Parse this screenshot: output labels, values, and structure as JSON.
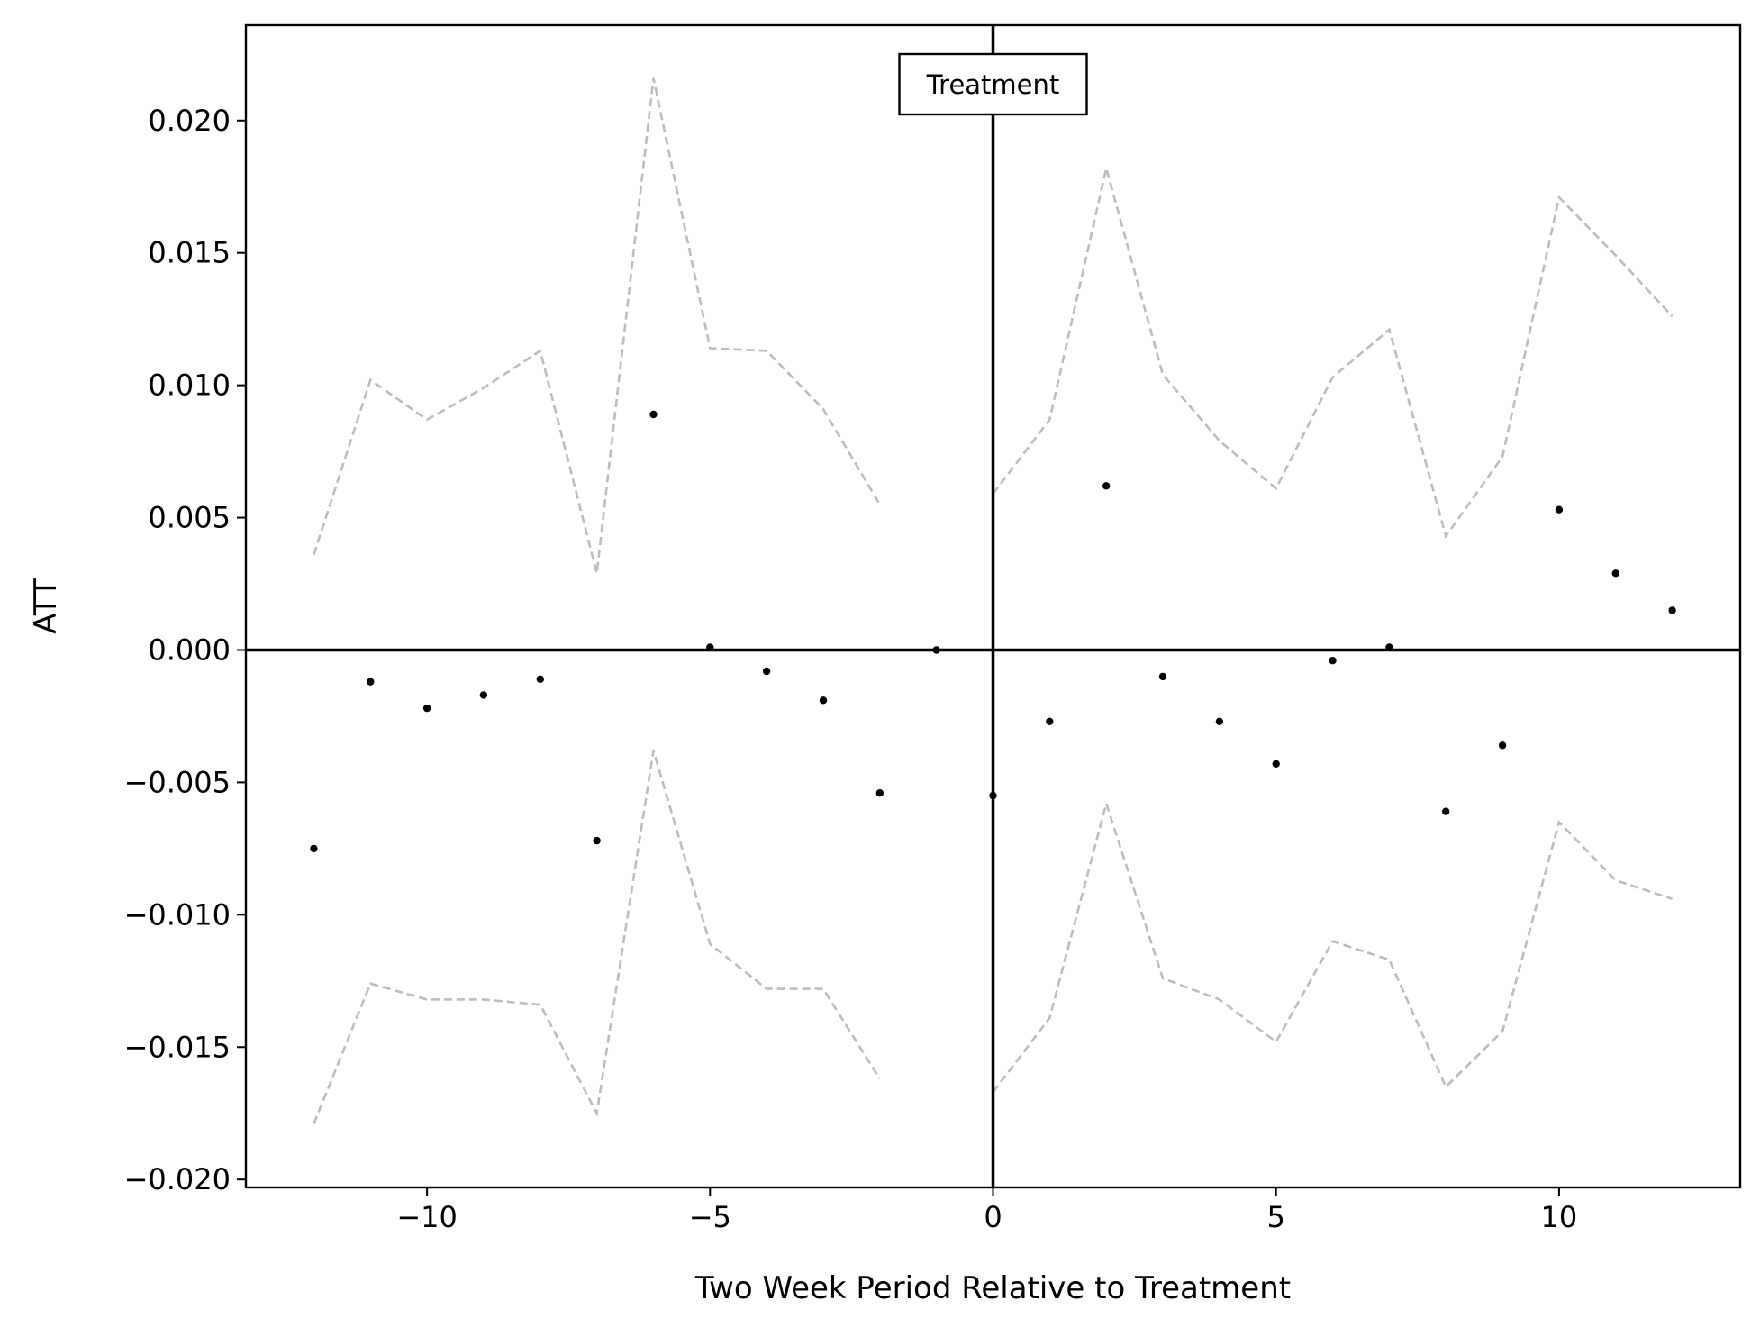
{
  "chart_data": {
    "type": "scatter",
    "xlabel": "Two Week Period Relative to Treatment",
    "ylabel": "ATT",
    "xlim": [
      -13.2,
      13.2
    ],
    "ylim": [
      -0.0203,
      0.0236
    ],
    "xticks": [
      -10,
      -5,
      0,
      5,
      10
    ],
    "xtick_labels": [
      "−10",
      "−5",
      "0",
      "5",
      "10"
    ],
    "yticks": [
      -0.02,
      -0.015,
      -0.01,
      -0.005,
      0.0,
      0.005,
      0.01,
      0.015,
      0.02
    ],
    "ytick_labels": [
      "−0.020",
      "−0.015",
      "−0.010",
      "−0.005",
      "0.000",
      "0.005",
      "0.010",
      "0.015",
      "0.020"
    ],
    "grid": false,
    "annotation": "Treatment",
    "treatment_x": 0,
    "zero_line_y": 0,
    "x": [
      -12,
      -11,
      -10,
      -9,
      -8,
      -7,
      -6,
      -5,
      -4,
      -3,
      -2,
      -1,
      0,
      1,
      2,
      3,
      4,
      5,
      6,
      7,
      8,
      9,
      10,
      11,
      12
    ],
    "att": [
      -0.0075,
      -0.0012,
      -0.0022,
      -0.0017,
      -0.0011,
      -0.0072,
      0.0089,
      0.0001,
      -0.0008,
      -0.0019,
      -0.0054,
      0.0,
      -0.0055,
      -0.0027,
      0.0062,
      -0.001,
      -0.0027,
      -0.0043,
      -0.0004,
      0.0001,
      -0.0061,
      -0.0036,
      0.0053,
      0.0029,
      0.0015
    ],
    "upper_ci_pre": [
      0.0036,
      0.0102,
      0.0087,
      0.0099,
      0.0113,
      0.0029,
      0.0216,
      0.0114,
      0.0113,
      0.0091,
      0.0055
    ],
    "lower_ci_pre": [
      -0.0179,
      -0.0126,
      -0.0132,
      -0.0132,
      -0.0134,
      -0.0175,
      -0.0038,
      -0.0111,
      -0.0128,
      -0.0128,
      -0.0162
    ],
    "upper_ci_post": [
      0.0059,
      0.0087,
      0.0182,
      0.0104,
      0.0079,
      0.0061,
      0.0103,
      0.0121,
      0.0043,
      0.0073,
      0.0171,
      0.0149,
      0.0126
    ],
    "lower_ci_post": [
      -0.0167,
      -0.0139,
      -0.0058,
      -0.0124,
      -0.0132,
      -0.0148,
      -0.011,
      -0.0117,
      -0.0165,
      -0.0144,
      -0.0065,
      -0.0087,
      -0.0094
    ],
    "colors": {
      "points": "#000000",
      "ci": "#bdbdbd",
      "reference_lines": "#000000"
    }
  }
}
